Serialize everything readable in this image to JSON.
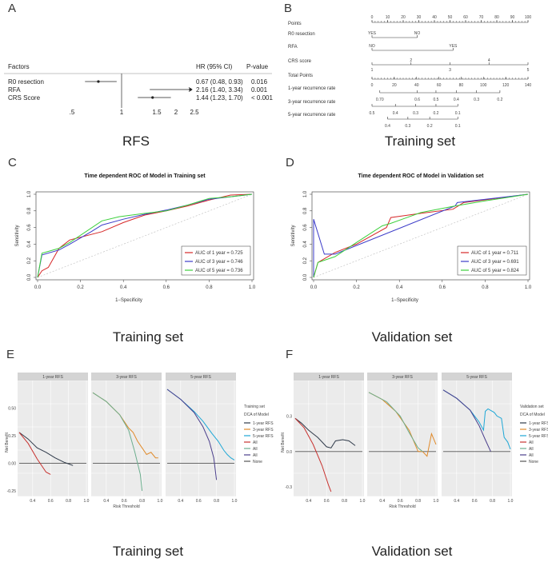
{
  "panels": {
    "A": "A",
    "B": "B",
    "C": "C",
    "D": "D",
    "E": "E",
    "F": "F"
  },
  "captions": {
    "A": "RFS",
    "B": "Training set",
    "C": "Training set",
    "D": "Validation set",
    "E": "Training set",
    "F": "Validation set"
  },
  "forest": {
    "header_factor": "Factors",
    "header_hr": "HR (95% CI)",
    "header_p": "P-value",
    "rows": [
      {
        "factor": "R0 resection",
        "hr": "0.67 (0.48, 0.93)",
        "p": "0.016",
        "est": 0.67,
        "lo": 0.48,
        "hi": 0.93
      },
      {
        "factor": "RFA",
        "hr": "2.16 (1.40, 3.34)",
        "p": "0.001",
        "est": 2.16,
        "lo": 1.4,
        "hi": 3.34
      },
      {
        "factor": "CRS Score",
        "hr": "1.44 (1.23, 1.70)",
        "p": "< 0.001",
        "est": 1.44,
        "lo": 1.23,
        "hi": 1.7
      }
    ],
    "ticks": [
      ".5",
      "1",
      "1.5",
      "2",
      "2.5"
    ]
  },
  "nomogram": {
    "rows": [
      {
        "label": "Points",
        "ticks": [
          "0",
          "10",
          "20",
          "30",
          "40",
          "50",
          "60",
          "70",
          "80",
          "90",
          "100"
        ]
      },
      {
        "label": "R0 resection",
        "ticks": [
          "NO",
          "YES"
        ]
      },
      {
        "label": "RFA",
        "ticks": [
          "NO",
          "YES"
        ]
      },
      {
        "label": "CRS score",
        "ticks": [
          "1",
          "2",
          "3",
          "4",
          "5"
        ]
      },
      {
        "label": "Total Points",
        "ticks": [
          "0",
          "20",
          "40",
          "60",
          "80",
          "100",
          "120",
          "140"
        ]
      },
      {
        "label": "1-year recurrence rate",
        "ticks": [
          "0.70",
          "0.6",
          "0.5",
          "0.4",
          "0.3",
          "0.2"
        ]
      },
      {
        "label": "3-year recurrence rate",
        "ticks": [
          "0.5",
          "0.4",
          "0.3",
          "0.2",
          "0.1"
        ]
      },
      {
        "label": "5-year recurrence rate",
        "ticks": [
          "0.4",
          "0.3",
          "0.2",
          "0.1"
        ]
      }
    ]
  },
  "chart_data": [
    {
      "type": "line",
      "title": "Time dependent ROC of Model in Training set",
      "xlabel": "1−Specificity",
      "ylabel": "Sensitivity",
      "xlim": [
        0,
        1
      ],
      "ylim": [
        0,
        1
      ],
      "ticks": [
        "0.0",
        "0.2",
        "0.4",
        "0.6",
        "0.8",
        "1.0"
      ],
      "series": [
        {
          "name": "AUC of 1 year = 0.725",
          "color": "#d62728",
          "x": [
            0,
            0.02,
            0.05,
            0.1,
            0.15,
            0.3,
            0.4,
            0.5,
            0.6,
            0.7,
            0.8,
            0.9,
            1
          ],
          "y": [
            0,
            0.08,
            0.12,
            0.35,
            0.45,
            0.55,
            0.66,
            0.75,
            0.8,
            0.86,
            0.93,
            0.99,
            1
          ]
        },
        {
          "name": "AUC of 3 year = 0.746",
          "color": "#3b3bc8",
          "x": [
            0,
            0.02,
            0.1,
            0.15,
            0.25,
            0.3,
            0.4,
            0.5,
            0.6,
            0.7,
            0.8,
            0.9,
            1
          ],
          "y": [
            0,
            0.27,
            0.33,
            0.4,
            0.55,
            0.63,
            0.7,
            0.76,
            0.81,
            0.87,
            0.94,
            0.97,
            1
          ]
        },
        {
          "name": "AUC of 5 year = 0.736",
          "color": "#3cd03c",
          "x": [
            0,
            0.02,
            0.1,
            0.15,
            0.3,
            0.38,
            0.5,
            0.6,
            0.7,
            0.8,
            0.9,
            1
          ],
          "y": [
            0,
            0.29,
            0.35,
            0.42,
            0.68,
            0.73,
            0.77,
            0.8,
            0.87,
            0.95,
            0.97,
            1
          ]
        }
      ]
    },
    {
      "type": "line",
      "title": "Time dependent ROC of Model in Validation set",
      "xlabel": "1−Specificity",
      "ylabel": "Sensitivity",
      "xlim": [
        0,
        1
      ],
      "ylim": [
        0,
        1
      ],
      "ticks": [
        "0.0",
        "0.2",
        "0.4",
        "0.6",
        "0.8",
        "1.0"
      ],
      "series": [
        {
          "name": "AUC of 1 year = 0.711",
          "color": "#d62728",
          "x": [
            0,
            0.02,
            0.1,
            0.2,
            0.34,
            0.36,
            0.5,
            0.65,
            0.7,
            1
          ],
          "y": [
            0,
            0.18,
            0.3,
            0.4,
            0.6,
            0.72,
            0.77,
            0.82,
            0.9,
            1
          ]
        },
        {
          "name": "AUC of 3 year = 0.691",
          "color": "#3b3bc8",
          "x": [
            0,
            0,
            0.05,
            0.1,
            0.66,
            0.67,
            1
          ],
          "y": [
            0,
            0.7,
            0.28,
            0.28,
            0.86,
            0.9,
            1
          ]
        },
        {
          "name": "AUC of 5 year = 0.824",
          "color": "#3cd03c",
          "x": [
            0,
            0.02,
            0.1,
            0.2,
            0.32,
            0.36,
            0.5,
            0.66,
            0.8,
            1
          ],
          "y": [
            0,
            0.18,
            0.25,
            0.42,
            0.62,
            0.65,
            0.78,
            0.86,
            0.92,
            1
          ]
        }
      ]
    },
    {
      "type": "line",
      "title": "DCA Training set",
      "facets": [
        "1-year RFS",
        "3-year RFS",
        "5-year RFS"
      ],
      "xlabel": "Risk Threshold",
      "ylabel": "Net Benefit",
      "yticks": [
        "0.50",
        "0.25",
        "0.00",
        "-0.25"
      ],
      "xticks": [
        "0.4",
        "0.6",
        "0.8",
        "1.0"
      ],
      "legend_title": "Training set",
      "legend_sub": "DCA of Model",
      "legend": [
        {
          "name": "1-year RFS",
          "color": "#2f3a4a"
        },
        {
          "name": "3-year RFS",
          "color": "#e08a2a"
        },
        {
          "name": "5-year RFS",
          "color": "#1ea7d6"
        },
        {
          "name": "All",
          "color": "#c8322f"
        },
        {
          "name": "All",
          "color": "#6cae8e"
        },
        {
          "name": "All",
          "color": "#4b3f8c"
        },
        {
          "name": "None",
          "color": "#555555"
        }
      ]
    },
    {
      "type": "line",
      "title": "DCA Validation set",
      "facets": [
        "1-year RFS",
        "3-year RFS",
        "5-year RFS"
      ],
      "xlabel": "Risk Threshold",
      "ylabel": "Net Benefit",
      "yticks": [
        "0.3",
        "0.0",
        "-0.3"
      ],
      "xticks": [
        "0.4",
        "0.6",
        "0.8",
        "1.0"
      ],
      "legend_title": "Validation set",
      "legend_sub": "DCA of Model",
      "legend": [
        {
          "name": "1-year RFS",
          "color": "#2f3a4a"
        },
        {
          "name": "3-year RFS",
          "color": "#e08a2a"
        },
        {
          "name": "5-year RFS",
          "color": "#1ea7d6"
        },
        {
          "name": "All",
          "color": "#c8322f"
        },
        {
          "name": "All",
          "color": "#6cae8e"
        },
        {
          "name": "All",
          "color": "#4b3f8c"
        },
        {
          "name": "None",
          "color": "#555555"
        }
      ]
    }
  ]
}
